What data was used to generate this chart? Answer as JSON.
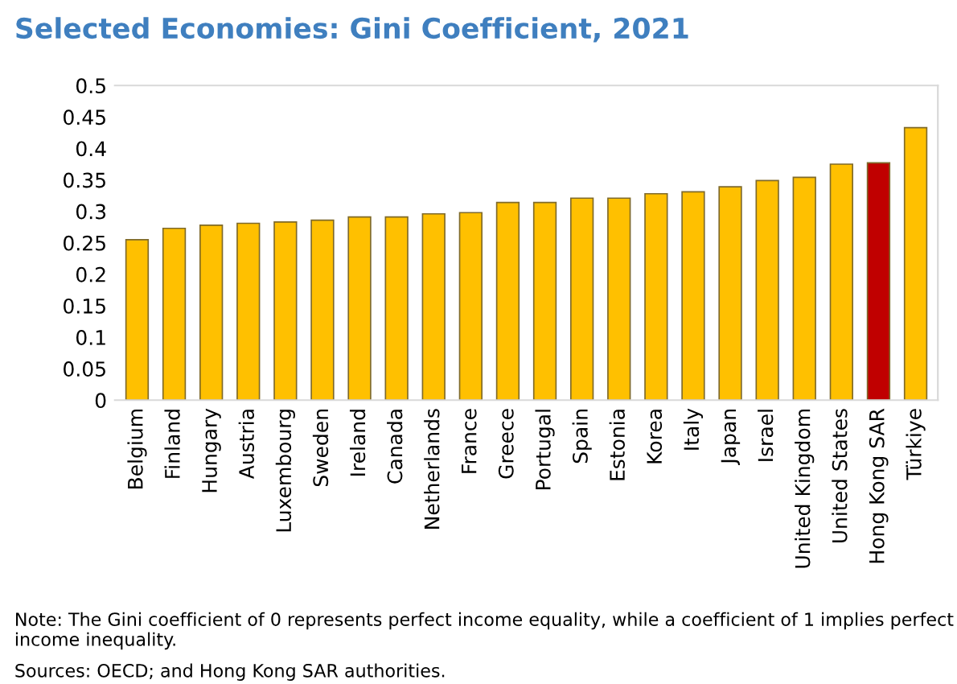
{
  "chart_data": {
    "type": "bar",
    "title": "Selected Economies: Gini Coefficient, 2021",
    "categories": [
      "Belgium",
      "Finland",
      "Hungary",
      "Austria",
      "Luxembourg",
      "Sweden",
      "Ireland",
      "Canada",
      "Netherlands",
      "France",
      "Greece",
      "Portugal",
      "Spain",
      "Estonia",
      "Korea",
      "Italy",
      "Japan",
      "Israel",
      "United Kingdom",
      "United States",
      "Hong Kong SAR",
      "Türkiye"
    ],
    "values": [
      0.255,
      0.273,
      0.278,
      0.281,
      0.283,
      0.286,
      0.291,
      0.291,
      0.296,
      0.298,
      0.314,
      0.314,
      0.321,
      0.321,
      0.328,
      0.331,
      0.339,
      0.349,
      0.354,
      0.375,
      0.377,
      0.433
    ],
    "colors": [
      "#ffc000",
      "#ffc000",
      "#ffc000",
      "#ffc000",
      "#ffc000",
      "#ffc000",
      "#ffc000",
      "#ffc000",
      "#ffc000",
      "#ffc000",
      "#ffc000",
      "#ffc000",
      "#ffc000",
      "#ffc000",
      "#ffc000",
      "#ffc000",
      "#ffc000",
      "#ffc000",
      "#ffc000",
      "#ffc000",
      "#c00000",
      "#ffc000"
    ],
    "ylim": [
      0,
      0.5
    ],
    "yticks": [
      0,
      0.05,
      0.1,
      0.15,
      0.2,
      0.25,
      0.3,
      0.35,
      0.4,
      0.45,
      0.5
    ],
    "grid": false,
    "legend": false,
    "annotations": [
      "Note: The Gini coefficient of 0 represents perfect income equality, while a coefficient of 1 implies perfect income inequality.",
      "Sources: OECD; and Hong Kong SAR authorities."
    ]
  }
}
